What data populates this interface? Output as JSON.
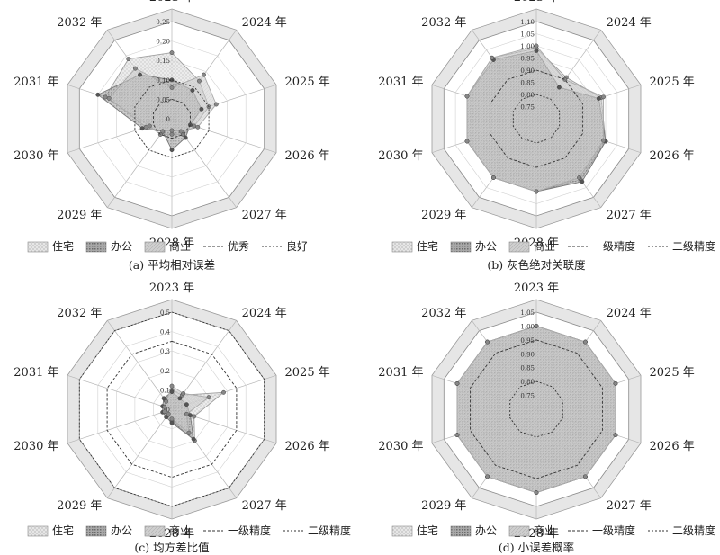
{
  "categories": [
    "2023 年",
    "2024 年",
    "2025 年",
    "2026 年",
    "2027 年",
    "2028 年",
    "2029 年",
    "2030 年",
    "2031 年",
    "2032 年"
  ],
  "colors": {
    "frame": "#e6e6e6",
    "residential": "#bdbdbd",
    "office": "#8a8a8a",
    "commercial": "#c8c8c8"
  },
  "chart_data": [
    {
      "type": "radar",
      "caption": "(a) 平均相对误差",
      "categories": [
        "2023 年",
        "2024 年",
        "2025 年",
        "2026 年",
        "2027 年",
        "2028 年",
        "2029 年",
        "2030 年",
        "2031 年",
        "2032 年"
      ],
      "rlim": [
        0,
        0.25
      ],
      "ticks": [
        "0",
        "0.05",
        "0.10",
        "0.15",
        "0.20",
        "0.25"
      ],
      "series": [
        {
          "name": "住宅",
          "values": [
            0.17,
            0.12,
            0.1,
            0.06,
            0.05,
            0.04,
            0.05,
            0.06,
            0.18,
            0.19
          ]
        },
        {
          "name": "办公",
          "values": [
            0.1,
            0.09,
            0.08,
            0.05,
            0.06,
            0.08,
            0.04,
            0.08,
            0.2,
            0.14
          ]
        },
        {
          "name": "商业",
          "values": [
            0.08,
            0.14,
            0.12,
            0.07,
            0.04,
            0.03,
            0.04,
            0.07,
            0.17,
            0.16
          ]
        }
      ],
      "reference_lines": [
        {
          "name": "优秀",
          "value": 0.05
        },
        {
          "name": "良好",
          "value": 0.1
        }
      ]
    },
    {
      "type": "radar",
      "caption": "(b) 灰色绝对关联度",
      "categories": [
        "2023 年",
        "2024 年",
        "2025 年",
        "2026 年",
        "2027 年",
        "2028 年",
        "2029 年",
        "2030 年",
        "2031 年",
        "2032 年"
      ],
      "rlim": [
        0.7,
        1.1
      ],
      "ticks": [
        "0.75",
        "0.80",
        "0.85",
        "0.90",
        "0.95",
        "1.00",
        "1.05",
        "1.10"
      ],
      "series": [
        {
          "name": "住宅",
          "values": [
            0.99,
            0.91,
            0.98,
            1.0,
            1.01,
            1.0,
            1.0,
            1.0,
            1.0,
            1.01
          ]
        },
        {
          "name": "办公",
          "values": [
            0.98,
            0.86,
            0.97,
            1.0,
            1.02,
            1.0,
            1.0,
            1.0,
            1.0,
            1.0
          ]
        },
        {
          "name": "商业",
          "values": [
            1.0,
            0.9,
            0.99,
            0.99,
            1.0,
            1.0,
            1.0,
            1.0,
            1.0,
            1.01
          ]
        }
      ],
      "reference_lines": [
        {
          "name": "一级精度",
          "value": 0.9
        },
        {
          "name": "二级精度",
          "value": 0.8
        }
      ]
    },
    {
      "type": "radar",
      "caption": "(c) 均方差比值",
      "categories": [
        "2023 年",
        "2024 年",
        "2025 年",
        "2026 年",
        "2027 年",
        "2028 年",
        "2029 年",
        "2030 年",
        "2031 年",
        "2032 年"
      ],
      "rlim": [
        0,
        0.5
      ],
      "ticks": [
        "0",
        "0.1",
        "0.2",
        "0.3",
        "0.4",
        "0.5"
      ],
      "series": [
        {
          "name": "住宅",
          "values": [
            0.1,
            0.09,
            0.28,
            0.12,
            0.2,
            0.06,
            0.04,
            0.04,
            0.04,
            0.06
          ]
        },
        {
          "name": "办公",
          "values": [
            0.09,
            0.07,
            0.08,
            0.1,
            0.19,
            0.07,
            0.05,
            0.05,
            0.05,
            0.07
          ]
        },
        {
          "name": "商业",
          "values": [
            0.12,
            0.1,
            0.2,
            0.08,
            0.15,
            0.05,
            0.03,
            0.04,
            0.04,
            0.05
          ]
        }
      ],
      "reference_lines": [
        {
          "name": "一级精度",
          "value": 0.35
        },
        {
          "name": "二级精度",
          "value": 0.5
        }
      ]
    },
    {
      "type": "radar",
      "caption": "(d) 小误差概率",
      "categories": [
        "2023 年",
        "2024 年",
        "2025 年",
        "2026 年",
        "2027 年",
        "2028 年",
        "2029 年",
        "2030 年",
        "2031 年",
        "2032 年"
      ],
      "rlim": [
        0.7,
        1.05
      ],
      "ticks": [
        "0.75",
        "0.80",
        "0.85",
        "0.90",
        "0.95",
        "1.00",
        "1.05"
      ],
      "series": [
        {
          "name": "住宅",
          "values": [
            1,
            1,
            1,
            1,
            1,
            1,
            1,
            1,
            1,
            1
          ]
        },
        {
          "name": "办公",
          "values": [
            1,
            1,
            1,
            1,
            1,
            1,
            1,
            1,
            1,
            1
          ]
        },
        {
          "name": "商业",
          "values": [
            1,
            1,
            1,
            1,
            1,
            1,
            1,
            1,
            1,
            1
          ]
        }
      ],
      "reference_lines": [
        {
          "name": "一级精度",
          "value": 0.95
        },
        {
          "name": "二级精度",
          "value": 0.8
        }
      ]
    }
  ]
}
